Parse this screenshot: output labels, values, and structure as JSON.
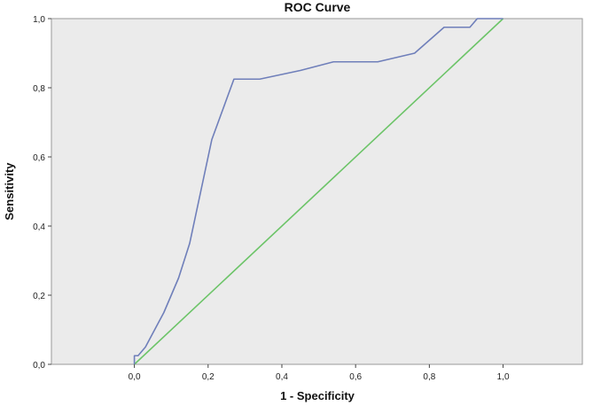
{
  "chart_data": {
    "type": "line",
    "title": "ROC Curve",
    "xlabel": "1 - Specificity",
    "ylabel": "Sensitivity",
    "xlim": [
      -0.225,
      1.215
    ],
    "ylim": [
      0,
      1
    ],
    "grid": false,
    "x_ticks": [
      "0,0",
      "0,2",
      "0,4",
      "0,6",
      "0,8",
      "1,0"
    ],
    "x_tick_values": [
      0,
      0.2,
      0.4,
      0.6,
      0.8,
      1.0
    ],
    "y_ticks": [
      "0,0",
      "0,2",
      "0,4",
      "0,6",
      "0,8",
      "1,0"
    ],
    "y_tick_values": [
      0,
      0.2,
      0.4,
      0.6,
      0.8,
      1.0
    ],
    "plot_background": "#ebebeb",
    "series": [
      {
        "color": "#6f7fba",
        "x": [
          0.0,
          0.0,
          0.01,
          0.03,
          0.05,
          0.08,
          0.12,
          0.15,
          0.18,
          0.21,
          0.27,
          0.34,
          0.45,
          0.54,
          0.66,
          0.76,
          0.84,
          0.91,
          0.93,
          1.0
        ],
        "y": [
          0.0,
          0.025,
          0.025,
          0.05,
          0.09,
          0.15,
          0.25,
          0.35,
          0.5,
          0.65,
          0.825,
          0.825,
          0.85,
          0.875,
          0.875,
          0.9,
          0.975,
          0.975,
          1.0,
          1.0
        ]
      },
      {
        "color": "#6cc468",
        "x": [
          0.0,
          1.0
        ],
        "y": [
          0.0,
          1.0
        ]
      }
    ]
  }
}
